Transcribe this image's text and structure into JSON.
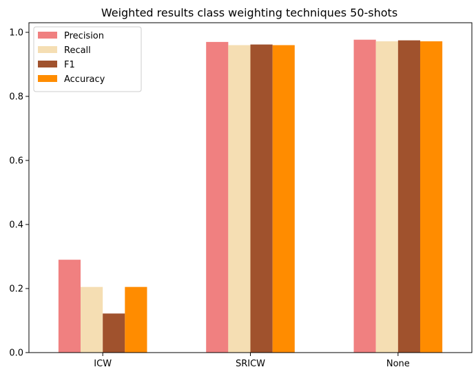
{
  "chart_data": {
    "type": "bar",
    "title": "Weighted results class weighting techniques 50-shots",
    "xlabel": "",
    "ylabel": "",
    "categories": [
      "ICW",
      "SRICW",
      "None"
    ],
    "series": [
      {
        "name": "Precision",
        "color": "#f08080",
        "values": [
          0.29,
          0.97,
          0.977
        ]
      },
      {
        "name": "Recall",
        "color": "#f5deb3",
        "values": [
          0.205,
          0.96,
          0.972
        ]
      },
      {
        "name": "F1",
        "color": "#a0522d",
        "values": [
          0.122,
          0.962,
          0.975
        ]
      },
      {
        "name": "Accuracy",
        "color": "#ff8c00",
        "values": [
          0.205,
          0.96,
          0.972
        ]
      }
    ],
    "ylim": [
      0,
      1.03
    ],
    "yticks": [
      "0.0",
      "0.2",
      "0.4",
      "0.6",
      "0.8",
      "1.0"
    ],
    "legend_position": "top-left",
    "grid": false
  }
}
